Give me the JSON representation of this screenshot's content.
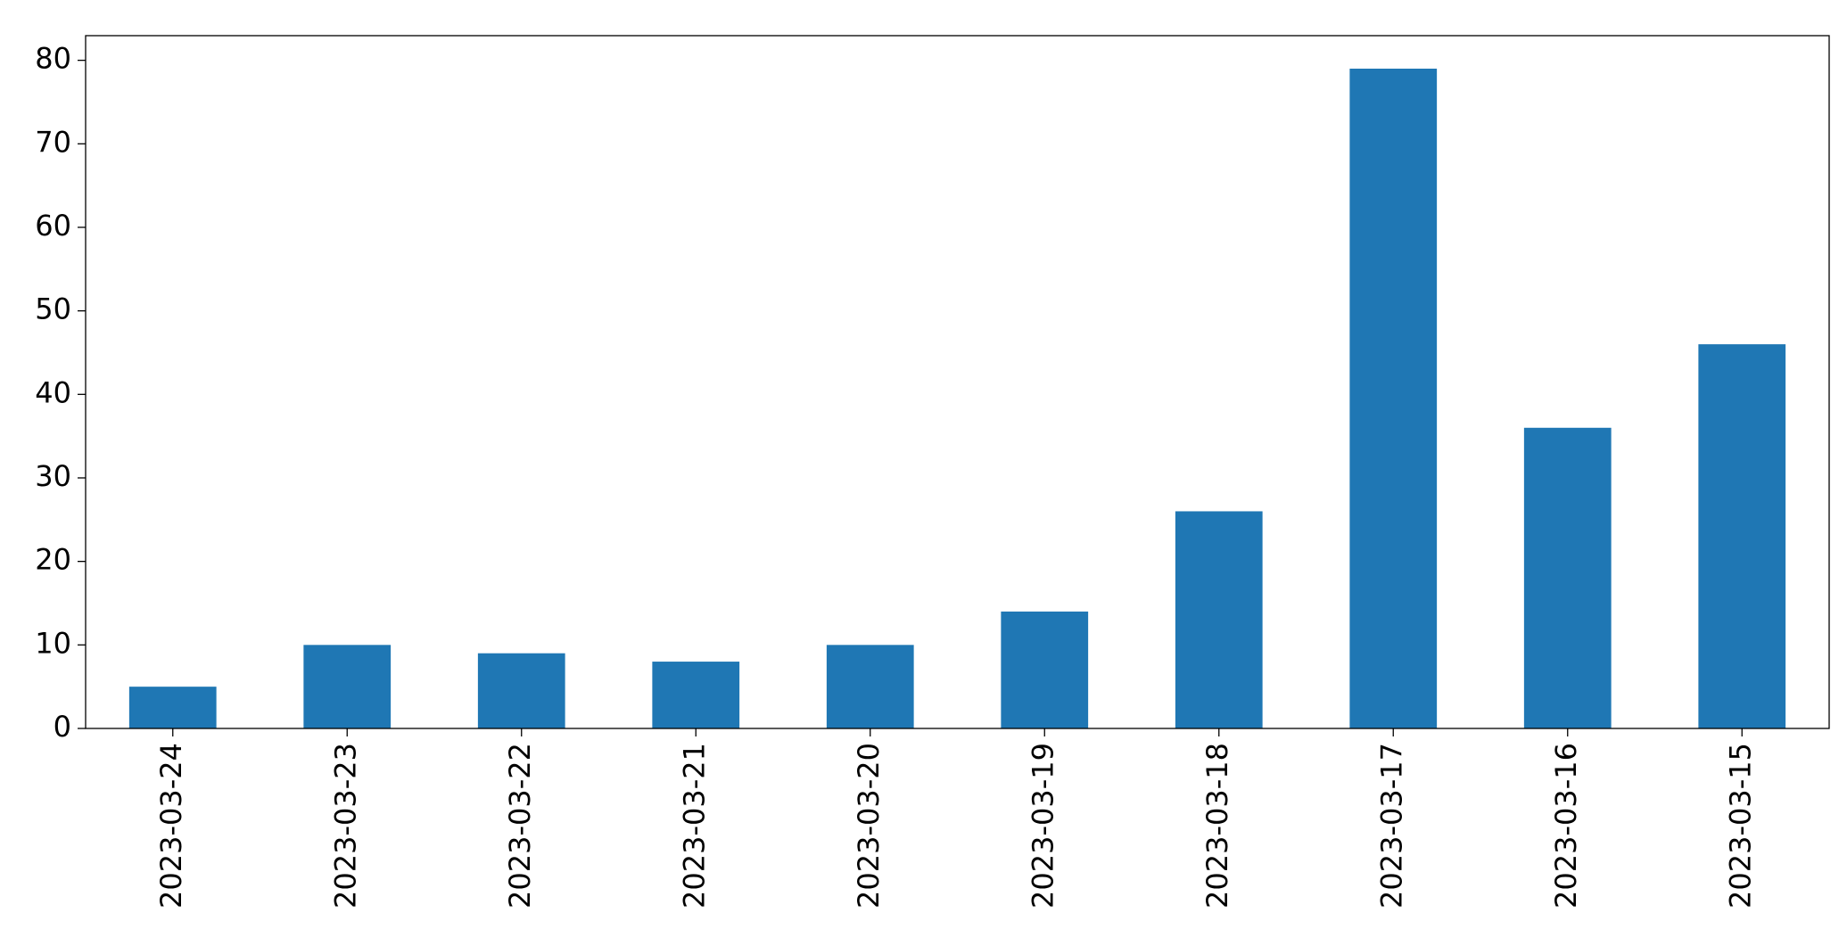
{
  "chart_data": {
    "type": "bar",
    "categories": [
      "2023-03-24",
      "2023-03-23",
      "2023-03-22",
      "2023-03-21",
      "2023-03-20",
      "2023-03-19",
      "2023-03-18",
      "2023-03-17",
      "2023-03-16",
      "2023-03-15"
    ],
    "values": [
      5,
      10,
      9,
      8,
      10,
      14,
      26,
      79,
      36,
      46
    ],
    "color": "#1f77b4",
    "ylim": [
      0,
      82.95
    ],
    "yticks": [
      0,
      10,
      20,
      30,
      40,
      50,
      60,
      70,
      80
    ],
    "grid": false
  }
}
